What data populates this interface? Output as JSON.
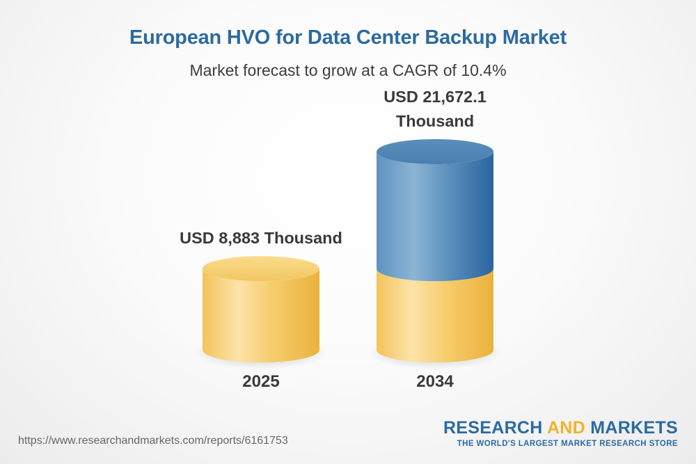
{
  "title": "European HVO for Data Center Backup Market",
  "subtitle": "Market forecast to grow at a CAGR of 10.4%",
  "chart_data": {
    "type": "bar",
    "style": "3d-cylinder",
    "categories": [
      "2025",
      "2034"
    ],
    "values": [
      8883,
      21672.1
    ],
    "unit": "Thousand USD",
    "data_labels": [
      [
        "USD 8,883 Thousand"
      ],
      [
        "USD 21,672.1",
        "Thousand"
      ]
    ],
    "xlabel": "",
    "ylabel": "",
    "grid": false,
    "legend": "none",
    "colors": {
      "base": "#f0c057",
      "growth": "#3f7fb4"
    }
  },
  "footer": {
    "url": "https://www.researchandmarkets.com/reports/6161753",
    "brand_part1": "RESEARCH ",
    "brand_accent": "AND",
    "brand_part2": " MARKETS",
    "tagline": "THE WORLD'S LARGEST MARKET RESEARCH STORE"
  }
}
